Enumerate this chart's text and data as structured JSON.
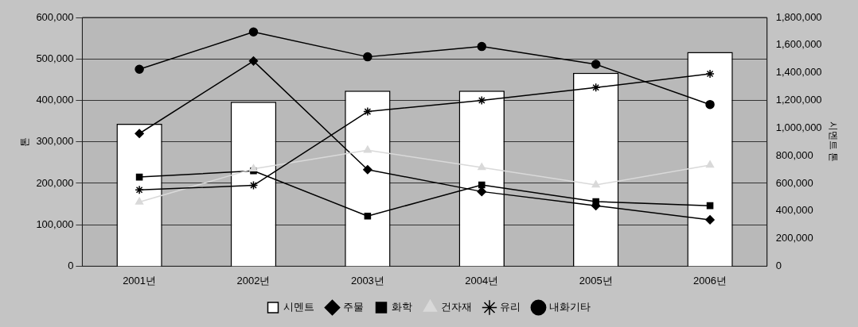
{
  "chart_data": {
    "type": "bar",
    "ylabel": "톤",
    "y2label": "시멘트 톤",
    "categories": [
      "2001년",
      "2002년",
      "2003년",
      "2004년",
      "2005년",
      "2006년"
    ],
    "series": [
      {
        "name": "시멘트",
        "axis": "y2",
        "color": "#ffffff",
        "values": [
          1030000,
          1190000,
          1270000,
          1270000,
          1400000,
          1550000
        ]
      },
      {
        "name": "주물",
        "type": "line",
        "marker": "diamond",
        "color": "#000000",
        "values": [
          320000,
          495000,
          233000,
          180000,
          146000,
          112000
        ]
      },
      {
        "name": "화학",
        "type": "line",
        "marker": "square",
        "color": "#000000",
        "values": [
          215000,
          230000,
          121000,
          196000,
          156000,
          146000
        ]
      },
      {
        "name": "건자재",
        "type": "line",
        "marker": "triangle",
        "color": "#d9d9d9",
        "values": [
          155000,
          235000,
          280000,
          238000,
          196000,
          244000
        ]
      },
      {
        "name": "유리",
        "type": "line",
        "marker": "cross",
        "color": "#000000",
        "values": [
          184000,
          195000,
          373000,
          400000,
          431000,
          464000
        ]
      },
      {
        "name": "내화기타",
        "type": "line",
        "marker": "circle",
        "color": "#000000",
        "values": [
          475000,
          565000,
          505000,
          530000,
          487000,
          390000
        ]
      }
    ],
    "ylim": [
      0,
      600000
    ],
    "yticks": [
      0,
      {
        "value": 100000,
        "label": "100,000"
      },
      {
        "value": 200000,
        "label": "200,000"
      },
      {
        "value": 300000,
        "label": "300,000"
      },
      {
        "value": 400000,
        "label": "400,000"
      },
      {
        "value": 500000,
        "label": "500,000"
      },
      {
        "value": 600000,
        "label": "600,000"
      }
    ],
    "y2lim": [
      0,
      1800000
    ],
    "y2ticks": [
      0,
      {
        "value": 200000,
        "label": "200,000"
      },
      {
        "value": 400000,
        "label": "400,000"
      },
      {
        "value": 600000,
        "label": "600,000"
      },
      {
        "value": 800000,
        "label": "800,000"
      },
      {
        "value": 1000000,
        "label": "1,000,000"
      },
      {
        "value": 1200000,
        "label": "1,200,000"
      },
      {
        "value": 1400000,
        "label": "1,400,000"
      },
      {
        "value": 1600000,
        "label": "1,600,000"
      },
      {
        "value": 1800000,
        "label": "1,800,000"
      }
    ],
    "grid": "y",
    "legend": "bottom"
  }
}
